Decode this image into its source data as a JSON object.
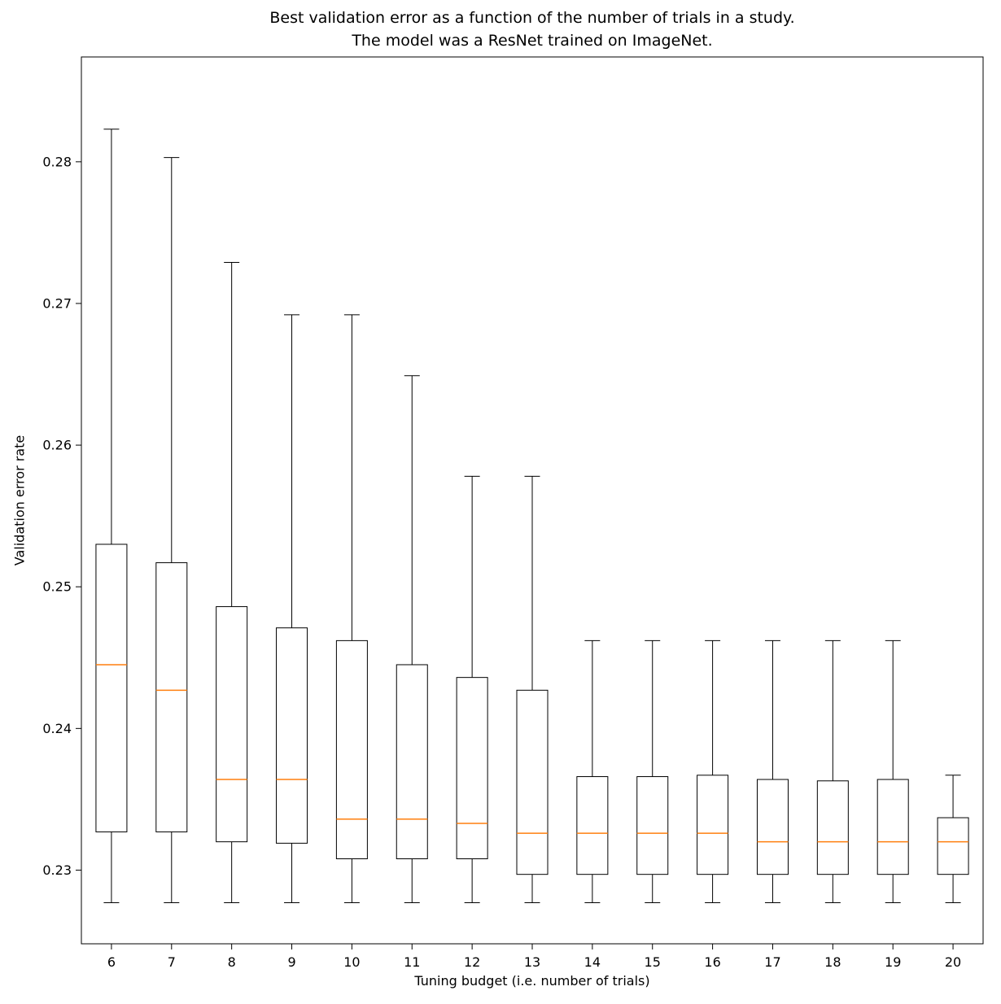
{
  "chart_data": {
    "type": "boxplot",
    "title_lines": [
      "Best validation error as a function of the number of trials in a study.",
      "The model was a ResNet trained on ImageNet."
    ],
    "xlabel": "Tuning budget (i.e. number of trials)",
    "ylabel": "Validation error rate",
    "categories": [
      "6",
      "7",
      "8",
      "9",
      "10",
      "11",
      "12",
      "13",
      "14",
      "15",
      "16",
      "17",
      "18",
      "19",
      "20"
    ],
    "yticks": [
      0.23,
      0.24,
      0.25,
      0.26,
      0.27,
      0.28
    ],
    "ylim": [
      0.2248,
      0.2874
    ],
    "grid": false,
    "legend": "none",
    "box_fill": "#ffffff",
    "line_color": "#000000",
    "median_color": "#ff7f0e",
    "boxes": [
      {
        "label": "6",
        "whislo": 0.2277,
        "q1": 0.2327,
        "med": 0.2445,
        "q3": 0.253,
        "whishi": 0.2823
      },
      {
        "label": "7",
        "whislo": 0.2277,
        "q1": 0.2327,
        "med": 0.2427,
        "q3": 0.2517,
        "whishi": 0.2803
      },
      {
        "label": "8",
        "whislo": 0.2277,
        "q1": 0.232,
        "med": 0.2364,
        "q3": 0.2486,
        "whishi": 0.2729
      },
      {
        "label": "9",
        "whislo": 0.2277,
        "q1": 0.2319,
        "med": 0.2364,
        "q3": 0.2471,
        "whishi": 0.2692
      },
      {
        "label": "10",
        "whislo": 0.2277,
        "q1": 0.2308,
        "med": 0.2336,
        "q3": 0.2462,
        "whishi": 0.2692
      },
      {
        "label": "11",
        "whislo": 0.2277,
        "q1": 0.2308,
        "med": 0.2336,
        "q3": 0.2445,
        "whishi": 0.2649
      },
      {
        "label": "12",
        "whislo": 0.2277,
        "q1": 0.2308,
        "med": 0.2333,
        "q3": 0.2436,
        "whishi": 0.2578
      },
      {
        "label": "13",
        "whislo": 0.2277,
        "q1": 0.2297,
        "med": 0.2326,
        "q3": 0.2427,
        "whishi": 0.2578
      },
      {
        "label": "14",
        "whislo": 0.2277,
        "q1": 0.2297,
        "med": 0.2326,
        "q3": 0.2366,
        "whishi": 0.2462
      },
      {
        "label": "15",
        "whislo": 0.2277,
        "q1": 0.2297,
        "med": 0.2326,
        "q3": 0.2366,
        "whishi": 0.2462
      },
      {
        "label": "16",
        "whislo": 0.2277,
        "q1": 0.2297,
        "med": 0.2326,
        "q3": 0.2367,
        "whishi": 0.2462
      },
      {
        "label": "17",
        "whislo": 0.2277,
        "q1": 0.2297,
        "med": 0.232,
        "q3": 0.2364,
        "whishi": 0.2462
      },
      {
        "label": "18",
        "whislo": 0.2277,
        "q1": 0.2297,
        "med": 0.232,
        "q3": 0.2363,
        "whishi": 0.2462
      },
      {
        "label": "19",
        "whislo": 0.2277,
        "q1": 0.2297,
        "med": 0.232,
        "q3": 0.2364,
        "whishi": 0.2462
      },
      {
        "label": "20",
        "whislo": 0.2277,
        "q1": 0.2297,
        "med": 0.232,
        "q3": 0.2337,
        "whishi": 0.2367
      }
    ]
  }
}
